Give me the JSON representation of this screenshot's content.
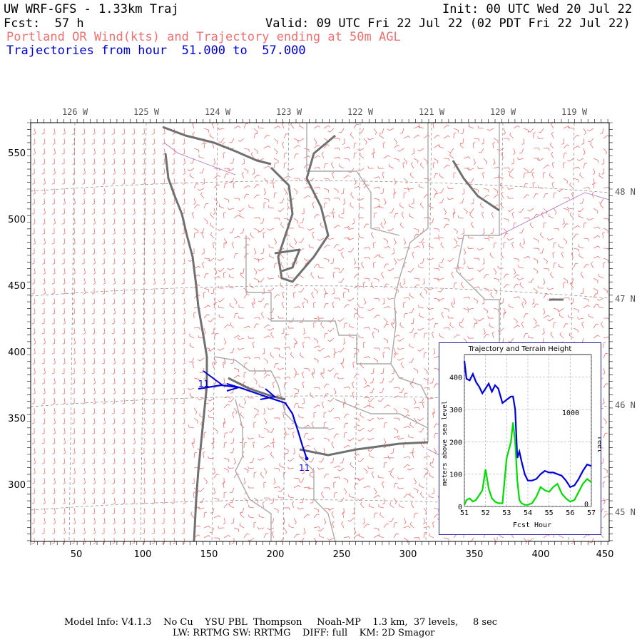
{
  "header": {
    "model_title": "UW WRF-GFS - 1.33km Traj",
    "init": "Init: 00 UTC Wed 20 Jul 22",
    "fcst": "Fcst:  57 h",
    "valid": "Valid: 09 UTC Fri 22 Jul 22 (02 PDT Fri 22 Jul 22)",
    "product": "Portland OR Wind(kts) and Trajectory ending at 50m AGL",
    "trajectory_range": "Trajectories from hour  51.000 to  57.000"
  },
  "map": {
    "top_longitude_labels": [
      "126 W",
      "125 W",
      "124 W",
      "123 W",
      "122 W",
      "121 W",
      "120 W",
      "119 W"
    ],
    "right_latitude_labels": [
      "48 N",
      "47 N",
      "46 N",
      "45 N"
    ],
    "y_axis_ticks": [
      "550",
      "500",
      "450",
      "400",
      "350",
      "300"
    ],
    "x_axis_ticks": [
      "50",
      "100",
      "150",
      "200",
      "250",
      "300",
      "350",
      "400",
      "450"
    ],
    "trajectory_start_label": "11",
    "trajectory_end_label": "11",
    "colors": {
      "wind_barbs": "#f07070",
      "coast": "#707070",
      "trajectory": "#0000dd",
      "state_lines": "#aaaaaa",
      "grid": "#888888"
    }
  },
  "inset": {
    "title": "Trajectory and Terrain Height",
    "ylabel_left": "meters above sea level",
    "ylabel_right": "feet",
    "xlabel": "Fcst Hour",
    "right_tick": "1000",
    "right_zero": "0",
    "chart_data": {
      "type": "line",
      "x_ticks": [
        "51",
        "52",
        "53",
        "54",
        "55",
        "56",
        "57"
      ],
      "y_ticks": [
        "0",
        "100",
        "200",
        "300",
        "400"
      ],
      "xlim": [
        51,
        57
      ],
      "ylim": [
        0,
        470
      ],
      "series": [
        {
          "color": "#0000dd",
          "points": [
            [
              51.0,
              450
            ],
            [
              51.1,
              395
            ],
            [
              51.25,
              390
            ],
            [
              51.4,
              410
            ],
            [
              51.55,
              385
            ],
            [
              51.7,
              370
            ],
            [
              51.85,
              350
            ],
            [
              52.0,
              365
            ],
            [
              52.15,
              380
            ],
            [
              52.3,
              355
            ],
            [
              52.45,
              375
            ],
            [
              52.6,
              365
            ],
            [
              52.8,
              320
            ],
            [
              53.0,
              330
            ],
            [
              53.2,
              340
            ],
            [
              53.3,
              340
            ],
            [
              53.4,
              300
            ],
            [
              53.5,
              150
            ],
            [
              53.6,
              170
            ],
            [
              53.7,
              140
            ],
            [
              53.85,
              100
            ],
            [
              54.0,
              80
            ],
            [
              54.2,
              80
            ],
            [
              54.4,
              85
            ],
            [
              54.6,
              100
            ],
            [
              54.8,
              110
            ],
            [
              55.0,
              105
            ],
            [
              55.2,
              105
            ],
            [
              55.4,
              100
            ],
            [
              55.6,
              95
            ],
            [
              55.8,
              80
            ],
            [
              56.0,
              60
            ],
            [
              56.2,
              65
            ],
            [
              56.4,
              85
            ],
            [
              56.6,
              110
            ],
            [
              56.8,
              130
            ],
            [
              57.0,
              125
            ]
          ]
        },
        {
          "color": "#00dd00",
          "points": [
            [
              51.0,
              5
            ],
            [
              51.1,
              20
            ],
            [
              51.25,
              25
            ],
            [
              51.4,
              15
            ],
            [
              51.55,
              20
            ],
            [
              51.7,
              35
            ],
            [
              51.85,
              50
            ],
            [
              52.0,
              115
            ],
            [
              52.15,
              55
            ],
            [
              52.3,
              25
            ],
            [
              52.45,
              15
            ],
            [
              52.6,
              10
            ],
            [
              52.8,
              10
            ],
            [
              53.0,
              150
            ],
            [
              53.2,
              200
            ],
            [
              53.3,
              260
            ],
            [
              53.4,
              200
            ],
            [
              53.5,
              80
            ],
            [
              53.6,
              20
            ],
            [
              53.7,
              10
            ],
            [
              53.85,
              5
            ],
            [
              54.0,
              5
            ],
            [
              54.2,
              10
            ],
            [
              54.4,
              30
            ],
            [
              54.6,
              60
            ],
            [
              54.8,
              50
            ],
            [
              55.0,
              45
            ],
            [
              55.2,
              60
            ],
            [
              55.4,
              70
            ],
            [
              55.6,
              40
            ],
            [
              55.8,
              25
            ],
            [
              56.0,
              15
            ],
            [
              56.2,
              20
            ],
            [
              56.4,
              45
            ],
            [
              56.6,
              70
            ],
            [
              56.8,
              85
            ],
            [
              57.0,
              75
            ]
          ]
        }
      ]
    }
  },
  "footer": {
    "line1": "Model Info: V4.1.3    No Cu    YSU PBL  Thompson     Noah-MP    1.3 km,  37 levels,     8 sec",
    "line2": "LW: RRTMG SW: RRTMG    DIFF: full    KM: 2D Smagor"
  }
}
